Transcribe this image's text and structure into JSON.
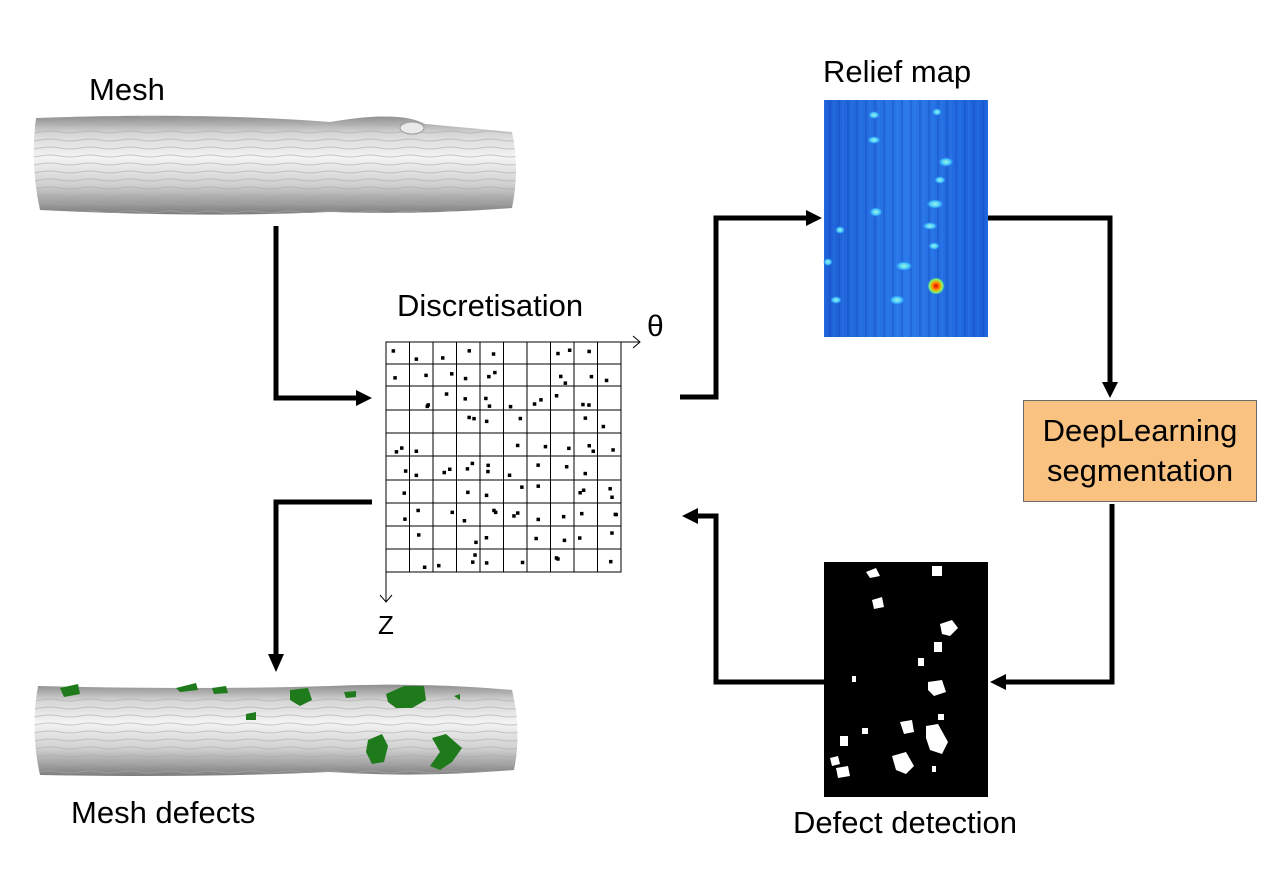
{
  "labels": {
    "mesh": "Mesh",
    "discretisation": "Discretisation",
    "relief_map": "Relief map",
    "mesh_defects": "Mesh defects",
    "defect_detection": "Defect detection"
  },
  "segmentation_box": {
    "line1": "DeepLearning",
    "line2": "segmentation"
  },
  "axes": {
    "theta": "θ",
    "z": "Z"
  },
  "colors": {
    "box_fill": "#fac280",
    "defect_green": "#1e7a1a",
    "mesh_gray": "#c8c8c8",
    "relief_blue": "#1f6fe0",
    "mask_black": "#000000"
  }
}
